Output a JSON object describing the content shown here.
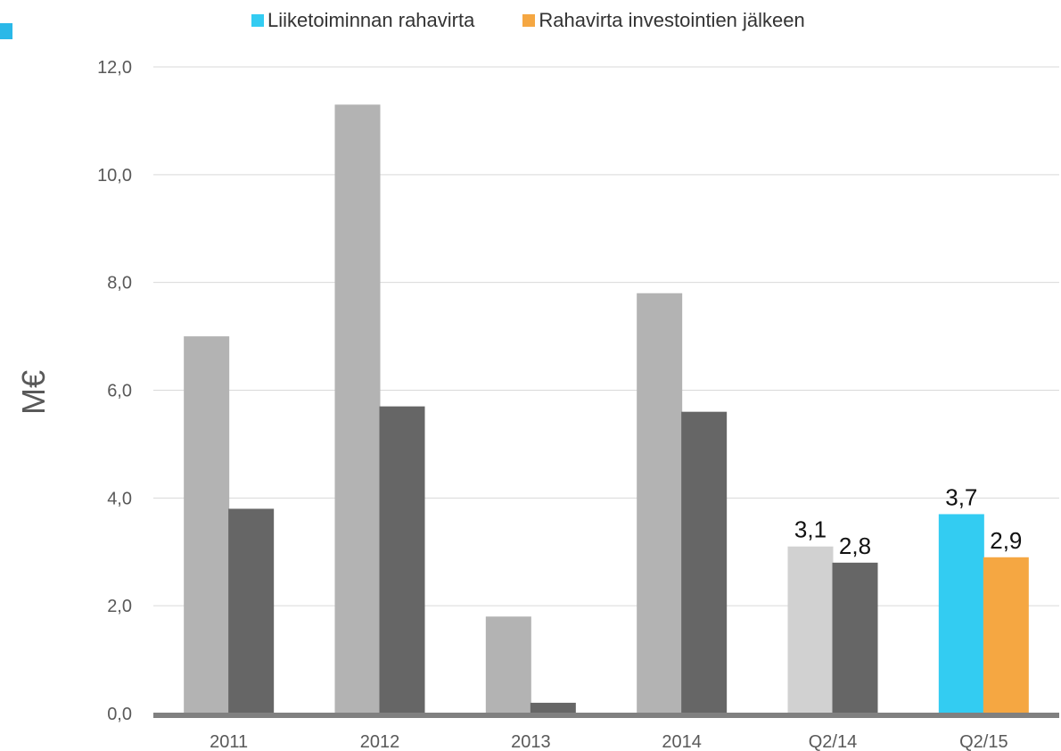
{
  "chart_data": {
    "type": "bar",
    "categories": [
      "2011",
      "2012",
      "2013",
      "2014",
      "Q2/14",
      "Q2/15"
    ],
    "series": [
      {
        "name": "Liiketoiminnan rahavirta",
        "values": [
          7.0,
          11.3,
          1.8,
          7.8,
          3.1,
          3.7
        ],
        "colors": [
          "#b3b3b3",
          "#b3b3b3",
          "#b3b3b3",
          "#b3b3b3",
          "#d1d1d1",
          "#33ccf2"
        ]
      },
      {
        "name": "Rahavirta investointien jälkeen",
        "values": [
          3.8,
          5.7,
          0.2,
          5.6,
          2.8,
          2.9
        ],
        "colors": [
          "#666666",
          "#666666",
          "#666666",
          "#666666",
          "#666666",
          "#f5a742"
        ]
      }
    ],
    "data_labels": [
      {
        "category": "Q2/14",
        "series": 0,
        "text": "3,1"
      },
      {
        "category": "Q2/14",
        "series": 1,
        "text": "2,8"
      },
      {
        "category": "Q2/15",
        "series": 0,
        "text": "3,7"
      },
      {
        "category": "Q2/15",
        "series": 1,
        "text": "2,9"
      }
    ],
    "ylabel": "M€",
    "xlabel": "",
    "ylim": [
      0,
      12
    ],
    "yticks": [
      "0,0",
      "2,0",
      "4,0",
      "6,0",
      "8,0",
      "10,0",
      "12,0"
    ],
    "grid": true,
    "legend": {
      "position": "top",
      "items": [
        {
          "label": "Liiketoiminnan rahavirta",
          "color": "#33ccf2"
        },
        {
          "label": "Rahavirta investointien jälkeen",
          "color": "#f5a742"
        }
      ]
    }
  }
}
